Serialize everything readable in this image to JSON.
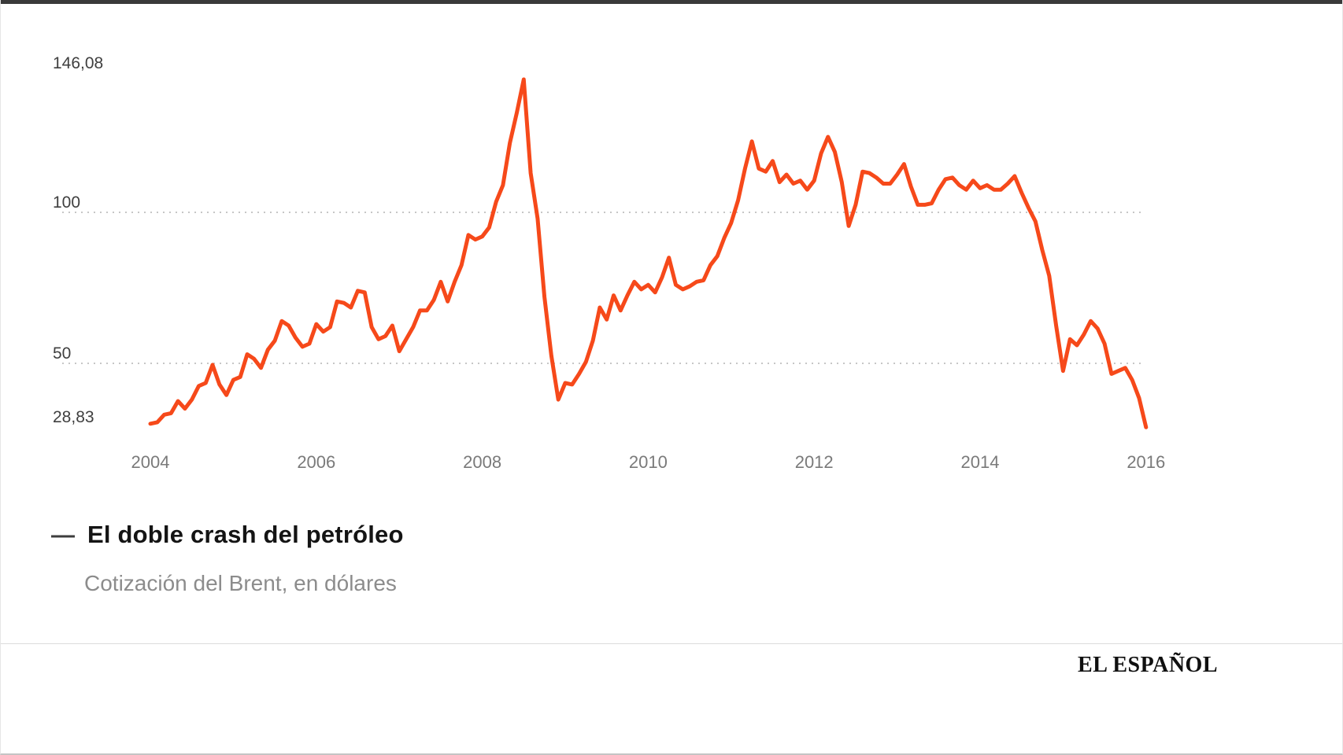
{
  "page": {
    "brand": "EL ESPAÑOL"
  },
  "legend": {
    "marker": "—",
    "title": "El doble crash del petróleo",
    "subtitle": "Cotización del Brent, en dólares"
  },
  "chart_data": {
    "type": "line",
    "title": "El doble crash del petróleo",
    "subtitle": "Cotización del Brent, en dólares",
    "series_name": "Cotización del Brent (USD)",
    "line_color": "#f6491a",
    "grid_color": "#c6c6c6",
    "axis_label_color": "#3f3f3f",
    "tick_label_color": "#7a7a7a",
    "legend_position": "bottom-left",
    "grid": "dotted horizontal at 100 and 50",
    "x_unit": "year",
    "x_start": 2004.0,
    "x_interval_years": 0.0833333,
    "xlim": [
      2003.8,
      2016.2
    ],
    "ylim": [
      20,
      155
    ],
    "x_ticks": [
      "2004",
      "2006",
      "2008",
      "2010",
      "2012",
      "2014",
      "2016"
    ],
    "gridline_values": [
      100,
      50
    ],
    "y_axis_labels": [
      {
        "text": "146,08",
        "value": 146.08
      },
      {
        "text": "100",
        "value": 100
      },
      {
        "text": "50",
        "value": 50
      },
      {
        "text": "28,83",
        "value": 28.83
      }
    ],
    "max_label": "146,08",
    "min_label": "28,83",
    "values": [
      30,
      30.5,
      33,
      33.5,
      37.5,
      35,
      38,
      42.5,
      43.5,
      49.5,
      43,
      39.5,
      44.5,
      45.5,
      53,
      51.5,
      48.5,
      54.5,
      57.5,
      64,
      62.5,
      58.5,
      55.5,
      56.5,
      63,
      60.5,
      62,
      70.5,
      70,
      68.5,
      74,
      73.5,
      62,
      58,
      59,
      62.5,
      54,
      58,
      62,
      67.5,
      67.5,
      71,
      77,
      70.5,
      77,
      82.5,
      92.5,
      91,
      92,
      95,
      103.5,
      109,
      123,
      133,
      144,
      113,
      98,
      72,
      52.5,
      38,
      43.5,
      43,
      46.5,
      50.5,
      57.5,
      68.5,
      64.5,
      72.5,
      67.5,
      72.5,
      77,
      74.5,
      76,
      73.5,
      78.5,
      85,
      76,
      74.5,
      75.5,
      77,
      77.5,
      82.5,
      85.5,
      91.5,
      96.5,
      104,
      114.5,
      123.5,
      114.5,
      113.5,
      117,
      110,
      112.5,
      109.5,
      110.5,
      107.5,
      110.5,
      119.5,
      125,
      120,
      110,
      95.5,
      102.5,
      113.5,
      113,
      111.5,
      109.5,
      109.5,
      112.5,
      116,
      108.5,
      102.5,
      102.5,
      103,
      107.5,
      111,
      111.5,
      109,
      107.5,
      110.5,
      108,
      109,
      107.5,
      107.5,
      109.5,
      112,
      106.5,
      101.5,
      97,
      87.5,
      79,
      62.5,
      47.5,
      58,
      56,
      59.5,
      64,
      61.5,
      56.5,
      46.5,
      47.5,
      48.5,
      44.5,
      38.5,
      28.83
    ]
  }
}
